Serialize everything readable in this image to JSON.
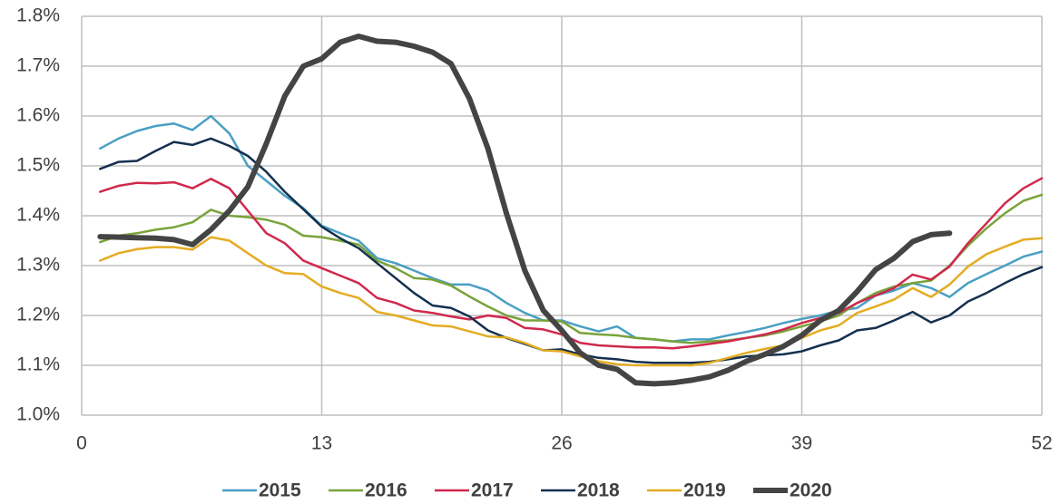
{
  "chart_data": {
    "type": "line",
    "x": [
      1,
      2,
      3,
      4,
      5,
      6,
      7,
      8,
      9,
      10,
      11,
      12,
      13,
      14,
      15,
      16,
      17,
      18,
      19,
      20,
      21,
      22,
      23,
      24,
      25,
      26,
      27,
      28,
      29,
      30,
      31,
      32,
      33,
      34,
      35,
      36,
      37,
      38,
      39,
      40,
      41,
      42,
      43,
      44,
      45,
      46,
      47,
      48,
      49,
      50,
      51,
      52
    ],
    "xlim": [
      0,
      52
    ],
    "xticks": [
      0,
      13,
      26,
      39,
      52
    ],
    "ylim": [
      1.0,
      1.8
    ],
    "yticks": [
      {
        "value": 1.0,
        "label": "1.0%"
      },
      {
        "value": 1.1,
        "label": "1.1%"
      },
      {
        "value": 1.2,
        "label": "1.2%"
      },
      {
        "value": 1.3,
        "label": "1.3%"
      },
      {
        "value": 1.4,
        "label": "1.4%"
      },
      {
        "value": 1.5,
        "label": "1.5%"
      },
      {
        "value": 1.6,
        "label": "1.6%"
      },
      {
        "value": 1.7,
        "label": "1.7%"
      },
      {
        "value": 1.8,
        "label": "1.8%"
      }
    ],
    "grid": true,
    "legend": "bottom",
    "series": [
      {
        "name": "2015",
        "color": "#4a9fc3",
        "width": 2.5,
        "values": [
          1.535,
          1.555,
          1.57,
          1.58,
          1.585,
          1.572,
          1.6,
          1.565,
          1.5,
          1.47,
          1.44,
          1.415,
          1.38,
          1.365,
          1.35,
          1.315,
          1.305,
          1.29,
          1.275,
          1.262,
          1.262,
          1.25,
          1.225,
          1.205,
          1.19,
          1.19,
          1.178,
          1.168,
          1.178,
          1.155,
          1.152,
          1.148,
          1.152,
          1.152,
          1.16,
          1.167,
          1.175,
          1.185,
          1.193,
          1.2,
          1.21,
          1.215,
          1.24,
          1.25,
          1.265,
          1.255,
          1.237,
          1.265,
          1.283,
          1.3,
          1.318,
          1.328
        ]
      },
      {
        "name": "2016",
        "color": "#79a33a",
        "width": 2.5,
        "values": [
          1.347,
          1.36,
          1.365,
          1.372,
          1.377,
          1.387,
          1.412,
          1.4,
          1.397,
          1.392,
          1.382,
          1.36,
          1.357,
          1.35,
          1.342,
          1.31,
          1.295,
          1.275,
          1.272,
          1.26,
          1.238,
          1.218,
          1.2,
          1.19,
          1.19,
          1.188,
          1.165,
          1.162,
          1.16,
          1.155,
          1.152,
          1.148,
          1.145,
          1.148,
          1.15,
          1.155,
          1.16,
          1.168,
          1.178,
          1.188,
          1.2,
          1.225,
          1.245,
          1.258,
          1.265,
          1.27,
          1.3,
          1.34,
          1.375,
          1.405,
          1.43,
          1.442
        ]
      },
      {
        "name": "2017",
        "color": "#d0284c",
        "width": 2.5,
        "values": [
          1.448,
          1.46,
          1.466,
          1.465,
          1.467,
          1.455,
          1.474,
          1.455,
          1.41,
          1.365,
          1.345,
          1.31,
          1.295,
          1.28,
          1.265,
          1.235,
          1.225,
          1.21,
          1.205,
          1.198,
          1.192,
          1.2,
          1.195,
          1.175,
          1.172,
          1.162,
          1.145,
          1.14,
          1.138,
          1.136,
          1.136,
          1.134,
          1.138,
          1.143,
          1.148,
          1.155,
          1.162,
          1.172,
          1.185,
          1.195,
          1.205,
          1.225,
          1.24,
          1.255,
          1.282,
          1.272,
          1.298,
          1.345,
          1.385,
          1.425,
          1.455,
          1.475
        ]
      },
      {
        "name": "2018",
        "color": "#14304f",
        "width": 2.5,
        "values": [
          1.494,
          1.508,
          1.51,
          1.53,
          1.548,
          1.542,
          1.555,
          1.54,
          1.52,
          1.488,
          1.448,
          1.413,
          1.378,
          1.355,
          1.335,
          1.305,
          1.275,
          1.245,
          1.22,
          1.215,
          1.198,
          1.17,
          1.155,
          1.143,
          1.13,
          1.132,
          1.122,
          1.115,
          1.112,
          1.107,
          1.105,
          1.105,
          1.105,
          1.107,
          1.112,
          1.118,
          1.12,
          1.122,
          1.128,
          1.14,
          1.15,
          1.17,
          1.175,
          1.19,
          1.207,
          1.186,
          1.2,
          1.228,
          1.245,
          1.265,
          1.283,
          1.297
        ]
      },
      {
        "name": "2019",
        "color": "#e3ac22",
        "width": 2.5,
        "values": [
          1.31,
          1.325,
          1.333,
          1.337,
          1.337,
          1.332,
          1.357,
          1.35,
          1.325,
          1.3,
          1.285,
          1.283,
          1.258,
          1.245,
          1.235,
          1.207,
          1.2,
          1.19,
          1.18,
          1.178,
          1.168,
          1.158,
          1.156,
          1.145,
          1.13,
          1.128,
          1.118,
          1.108,
          1.102,
          1.1,
          1.1,
          1.1,
          1.1,
          1.105,
          1.115,
          1.125,
          1.133,
          1.14,
          1.155,
          1.17,
          1.18,
          1.205,
          1.218,
          1.232,
          1.255,
          1.237,
          1.262,
          1.298,
          1.323,
          1.338,
          1.352,
          1.355
        ]
      },
      {
        "name": "2020",
        "color": "#444444",
        "width": 6,
        "values": [
          1.358,
          1.357,
          1.356,
          1.355,
          1.352,
          1.342,
          1.372,
          1.41,
          1.458,
          1.545,
          1.64,
          1.7,
          1.715,
          1.748,
          1.76,
          1.75,
          1.748,
          1.74,
          1.728,
          1.705,
          1.635,
          1.535,
          1.405,
          1.29,
          1.21,
          1.17,
          1.125,
          1.1,
          1.092,
          1.065,
          1.063,
          1.065,
          1.07,
          1.077,
          1.09,
          1.108,
          1.122,
          1.138,
          1.16,
          1.19,
          1.21,
          1.248,
          1.292,
          1.315,
          1.348,
          1.362,
          1.365,
          null,
          null,
          null,
          null,
          null
        ]
      }
    ]
  }
}
